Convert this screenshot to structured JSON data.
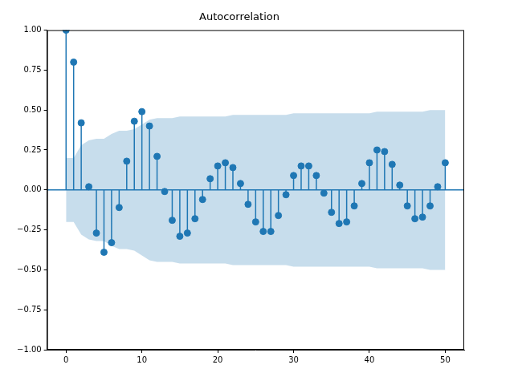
{
  "chart_data": {
    "type": "stem",
    "title": "Autocorrelation",
    "x": [
      0,
      1,
      2,
      3,
      4,
      5,
      6,
      7,
      8,
      9,
      10,
      11,
      12,
      13,
      14,
      15,
      16,
      17,
      18,
      19,
      20,
      21,
      22,
      23,
      24,
      25,
      26,
      27,
      28,
      29,
      30,
      31,
      32,
      33,
      34,
      35,
      36,
      37,
      38,
      39,
      40,
      41,
      42,
      43,
      44,
      45,
      46,
      47,
      48,
      49,
      50
    ],
    "values": [
      1.0,
      0.8,
      0.42,
      0.02,
      -0.27,
      -0.39,
      -0.33,
      -0.11,
      0.18,
      0.43,
      0.49,
      0.4,
      0.21,
      -0.01,
      -0.19,
      -0.29,
      -0.27,
      -0.18,
      -0.06,
      0.07,
      0.15,
      0.17,
      0.14,
      0.04,
      -0.09,
      -0.2,
      -0.26,
      -0.26,
      -0.16,
      -0.03,
      0.09,
      0.15,
      0.15,
      0.09,
      -0.02,
      -0.14,
      -0.21,
      -0.2,
      -0.1,
      0.04,
      0.17,
      0.25,
      0.24,
      0.16,
      0.03,
      -0.1,
      -0.18,
      -0.17,
      -0.1,
      0.02,
      0.17
    ],
    "confidence_upper": [
      0.2,
      0.2,
      0.28,
      0.31,
      0.32,
      0.32,
      0.35,
      0.37,
      0.37,
      0.38,
      0.41,
      0.44,
      0.45,
      0.45,
      0.45,
      0.46,
      0.46,
      0.46,
      0.46,
      0.46,
      0.46,
      0.46,
      0.47,
      0.47,
      0.47,
      0.47,
      0.47,
      0.47,
      0.47,
      0.47,
      0.48,
      0.48,
      0.48,
      0.48,
      0.48,
      0.48,
      0.48,
      0.48,
      0.48,
      0.48,
      0.48,
      0.49,
      0.49,
      0.49,
      0.49,
      0.49,
      0.49,
      0.49,
      0.5,
      0.5,
      0.5
    ],
    "confidence_lower": [
      -0.2,
      -0.2,
      -0.28,
      -0.31,
      -0.32,
      -0.32,
      -0.35,
      -0.37,
      -0.37,
      -0.38,
      -0.41,
      -0.44,
      -0.45,
      -0.45,
      -0.45,
      -0.46,
      -0.46,
      -0.46,
      -0.46,
      -0.46,
      -0.46,
      -0.46,
      -0.47,
      -0.47,
      -0.47,
      -0.47,
      -0.47,
      -0.47,
      -0.47,
      -0.47,
      -0.48,
      -0.48,
      -0.48,
      -0.48,
      -0.48,
      -0.48,
      -0.48,
      -0.48,
      -0.48,
      -0.48,
      -0.48,
      -0.49,
      -0.49,
      -0.49,
      -0.49,
      -0.49,
      -0.49,
      -0.49,
      -0.5,
      -0.5,
      -0.5
    ],
    "color": "#1f77b4",
    "marker": "circle",
    "grid": false,
    "xlim": [
      -2.5,
      52.5
    ],
    "xticks": [
      0,
      10,
      20,
      30,
      40,
      50
    ],
    "ylim": [
      -1,
      1
    ],
    "yticks": [
      {
        "value": -1,
        "label": "−1.00"
      },
      {
        "value": -0.75,
        "label": "−0.75"
      },
      {
        "value": -0.5,
        "label": "−0.50"
      },
      {
        "value": -0.25,
        "label": "−0.25"
      },
      {
        "value": 0,
        "label": "0.00"
      },
      {
        "value": 0.25,
        "label": "0.25"
      },
      {
        "value": 0.5,
        "label": "0.50"
      },
      {
        "value": 0.75,
        "label": "0.75"
      },
      {
        "value": 1,
        "label": "1.00"
      }
    ]
  }
}
